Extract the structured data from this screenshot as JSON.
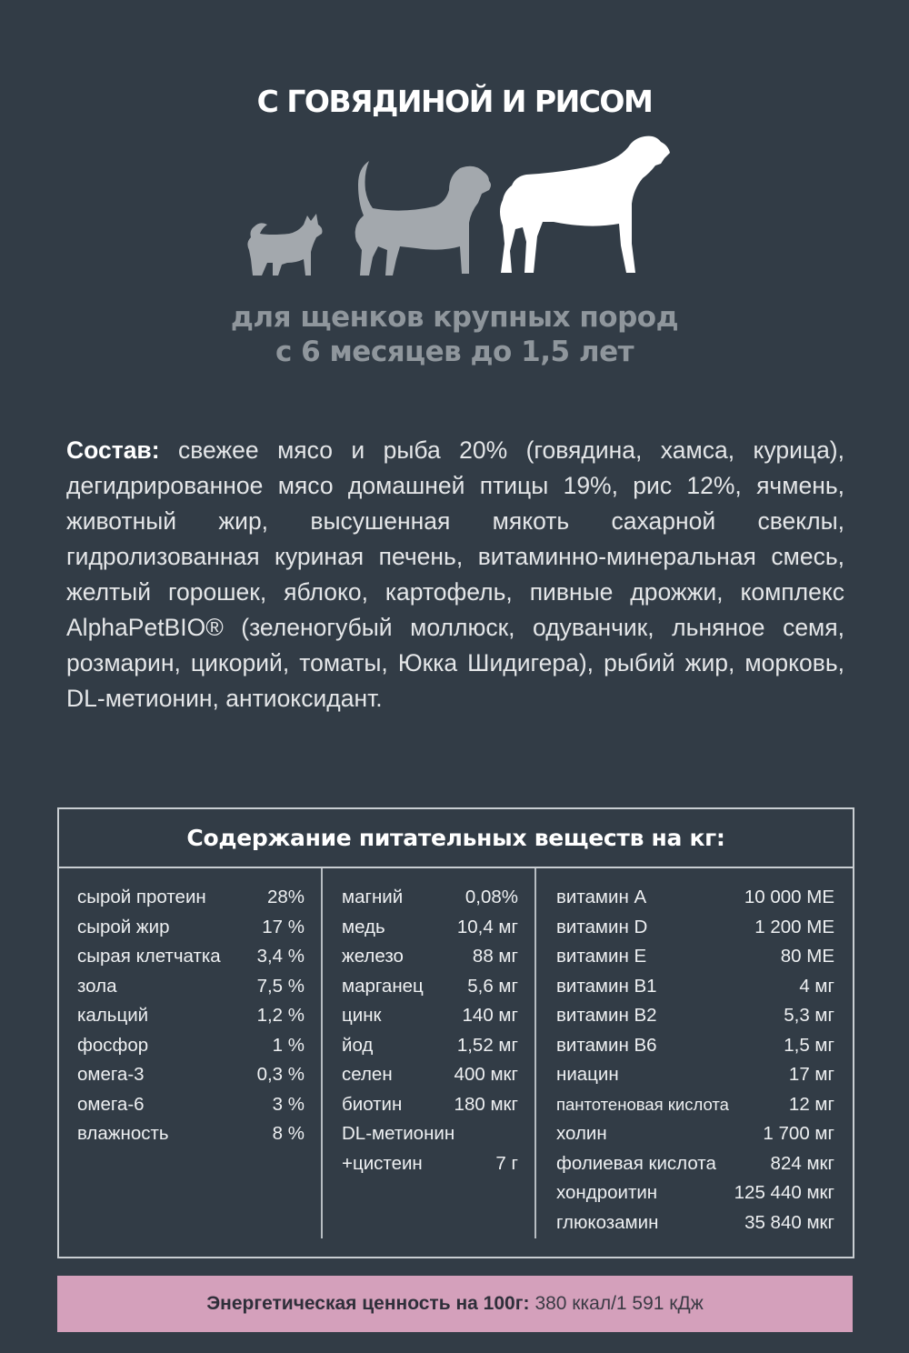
{
  "title": "С ГОВЯДИНОЙ И РИСОМ",
  "dogs": {
    "icons": [
      "small-dog-icon",
      "medium-dog-icon",
      "large-dog-icon"
    ],
    "colors": {
      "inactive": "#a3a8ad",
      "active": "#ffffff"
    }
  },
  "subtitle": {
    "line1": "для щенков крупных пород",
    "line2": "с 6 месяцев до 1,5 лет"
  },
  "composition": {
    "label": "Состав:",
    "text": "свежее мясо и рыба 20% (говядина, хамса, курица), дегидрированное мясо домашней птицы 19%, рис 12%, ячмень, животный жир, высушенная мякоть сахарной свеклы, гидролизованная куриная печень, витаминно-минеральная смесь, желтый горошек, яблоко, картофель, пивные дрожжи, комплекс AlphaPetBIO® (зеленогубый моллюск, одуванчик, льняное семя, розмарин, цикорий, томаты, Юкка Шидигера), рыбий жир, морковь, DL-метионин, антиоксидант."
  },
  "nutrients": {
    "header": "Содержание питательных веществ на кг:",
    "columns": [
      [
        {
          "name": "сырой протеин",
          "value": "28%"
        },
        {
          "name": "сырой жир",
          "value": "17 %"
        },
        {
          "name": "сырая клетчатка",
          "value": "3,4 %"
        },
        {
          "name": "зола",
          "value": "7,5 %"
        },
        {
          "name": "кальций",
          "value": "1,2 %"
        },
        {
          "name": "фосфор",
          "value": "1 %"
        },
        {
          "name": "омега-3",
          "value": "0,3 %"
        },
        {
          "name": "омега-6",
          "value": "3 %"
        },
        {
          "name": "влажность",
          "value": "8 %"
        }
      ],
      [
        {
          "name": "магний",
          "value": "0,08%"
        },
        {
          "name": "медь",
          "value": "10,4 мг"
        },
        {
          "name": "железо",
          "value": "88 мг"
        },
        {
          "name": "марганец",
          "value": "5,6 мг"
        },
        {
          "name": "цинк",
          "value": "140 мг"
        },
        {
          "name": "йод",
          "value": "1,52 мг"
        },
        {
          "name": "селен",
          "value": "400 мкг"
        },
        {
          "name": "биотин",
          "value": "180 мкг"
        },
        {
          "name": "DL-метионин",
          "value": ""
        },
        {
          "name": "+цистеин",
          "value": "7 г"
        }
      ],
      [
        {
          "name": "витамин A",
          "value": "10 000 МЕ"
        },
        {
          "name": "витамин D",
          "value": "1 200 МЕ"
        },
        {
          "name": "витамин E",
          "value": "80 МЕ"
        },
        {
          "name": "витамин B1",
          "value": "4 мг"
        },
        {
          "name": "витамин B2",
          "value": "5,3 мг"
        },
        {
          "name": "витамин B6",
          "value": "1,5 мг"
        },
        {
          "name": "ниацин",
          "value": "17 мг"
        },
        {
          "name": "пантотеновая кислота",
          "value": "12 мг"
        },
        {
          "name": "холин",
          "value": "1 700 мг"
        },
        {
          "name": "фолиевая кислота",
          "value": "824 мкг"
        },
        {
          "name": "хондроитин",
          "value": "125 440 мкг"
        },
        {
          "name": "глюкозамин",
          "value": "35 840 мкг"
        }
      ]
    ]
  },
  "energy": {
    "label": "Энергетическая ценность на 100г:",
    "value": "380 ккал/1 591 кДж",
    "background": "#d4a0bb"
  }
}
